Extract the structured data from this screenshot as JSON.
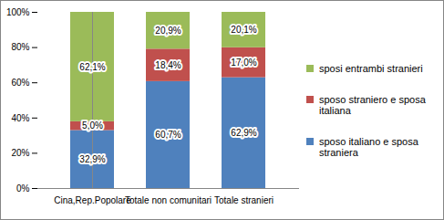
{
  "chart_data": {
    "type": "bar",
    "stacked": true,
    "categories": [
      "Cina,Rep.Popolare",
      "Totale non comunitari",
      "Totale stranieri"
    ],
    "series": [
      {
        "name": "sposo italiano e sposa straniera",
        "color": "#4f81bd",
        "values": [
          32.9,
          60.7,
          62.9
        ],
        "value_labels": [
          "32,9%",
          "60,7%",
          "62,9%"
        ]
      },
      {
        "name": "sposo straniero e sposa italiana",
        "color": "#c0504d",
        "values": [
          5.0,
          18.4,
          17.0
        ],
        "value_labels": [
          "5,0%",
          "18,4%",
          "17,0%"
        ]
      },
      {
        "name": "sposi entrambi stranieri",
        "color": "#9bbb59",
        "values": [
          62.1,
          20.9,
          20.1
        ],
        "value_labels": [
          "62,1%",
          "20,9%",
          "20,1%"
        ]
      }
    ],
    "ylim": [
      0,
      100
    ],
    "yticks": [
      {
        "value": 0,
        "label": "0%"
      },
      {
        "value": 20,
        "label": "20%"
      },
      {
        "value": 40,
        "label": "40%"
      },
      {
        "value": 60,
        "label": "60%"
      },
      {
        "value": 80,
        "label": "80%"
      },
      {
        "value": 100,
        "label": "100%"
      }
    ],
    "grid": false,
    "data_labels": true,
    "legend": "right"
  }
}
